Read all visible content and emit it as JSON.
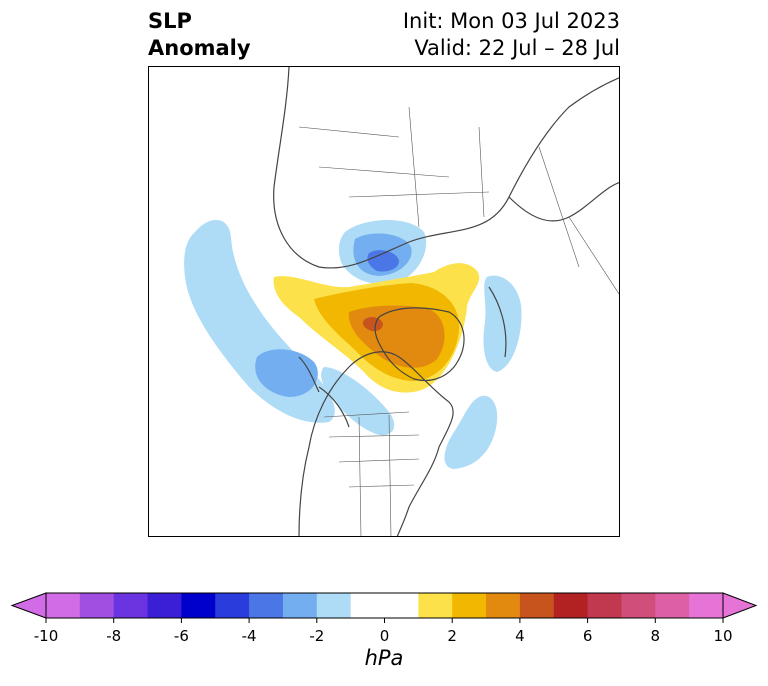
{
  "title": {
    "left_line1": "SLP",
    "left_line2": "Anomaly",
    "right_line1": "Init: Mon 03 Jul 2023",
    "right_line2": "Valid: 22 Jul – 28 Jul"
  },
  "colorbar": {
    "unit": "hPa",
    "ticks": [
      "-10",
      "-8",
      "-6",
      "-4",
      "-2",
      "0",
      "2",
      "4",
      "6",
      "8",
      "10"
    ],
    "colors": [
      "#d26be6",
      "#a04fe0",
      "#6a35e0",
      "#3a1fd6",
      "#0000cc",
      "#2a3ddc",
      "#4b76e6",
      "#72aef0",
      "#aedcf7",
      "#ffffff",
      "#ffffff",
      "#fce14a",
      "#f2b701",
      "#e18a0f",
      "#c8541d",
      "#b22222",
      "#c0394f",
      "#cf4e7a",
      "#dd60a5",
      "#e674d7"
    ],
    "under_color": "#d26be6",
    "over_color": "#e674d7"
  },
  "map": {
    "anomaly_colors": {
      "light_blue": "#aedcf7",
      "mid_blue": "#72aef0",
      "blue": "#4b76e6",
      "dark_blue": "#2a3ddc",
      "yellow": "#fce14a",
      "gold": "#f2b701",
      "orange": "#e18a0f",
      "dark_orange": "#c8541d"
    },
    "coastline_color": "#444444"
  }
}
